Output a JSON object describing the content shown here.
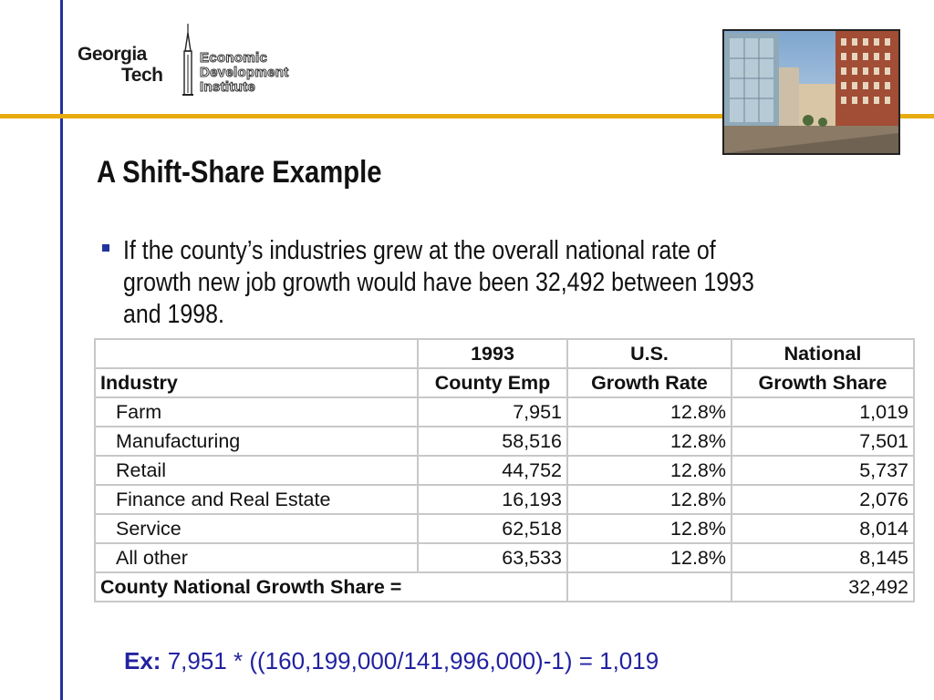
{
  "logo": {
    "line1": "Georgia",
    "line2": "Tech",
    "institute_lines": [
      "Economic",
      "Development",
      "Institute"
    ]
  },
  "title": "A Shift-Share Example",
  "bullet": {
    "lines": [
      "If the county’s industries grew at the overall national rate of",
      "growth new job growth would have been 32,492 between 1993",
      "and 1998."
    ]
  },
  "table": {
    "header1": [
      "",
      "1993",
      "U.S.",
      "National"
    ],
    "header2": [
      "Industry",
      "County Emp",
      "Growth Rate",
      "Growth Share"
    ],
    "rows": [
      [
        "Farm",
        "7,951",
        "12.8%",
        "1,019"
      ],
      [
        "Manufacturing",
        "58,516",
        "12.8%",
        "7,501"
      ],
      [
        "Retail",
        "44,752",
        "12.8%",
        "5,737"
      ],
      [
        "Finance and Real Estate",
        "16,193",
        "12.8%",
        "2,076"
      ],
      [
        "Service",
        "62,518",
        "12.8%",
        "8,014"
      ],
      [
        "All other",
        "63,533",
        "12.8%",
        "8,145"
      ]
    ],
    "total_label": "County National Growth Share =",
    "total_rate": "",
    "total_value": "32,492"
  },
  "example": {
    "label": "Ex:",
    "formula": "7,951 * ((160,199,000/141,996,000)-1) = 1,019"
  },
  "colors": {
    "accent_blue": "#2233a0",
    "accent_gold": "#e8ac10",
    "example_text": "#2222a0"
  }
}
